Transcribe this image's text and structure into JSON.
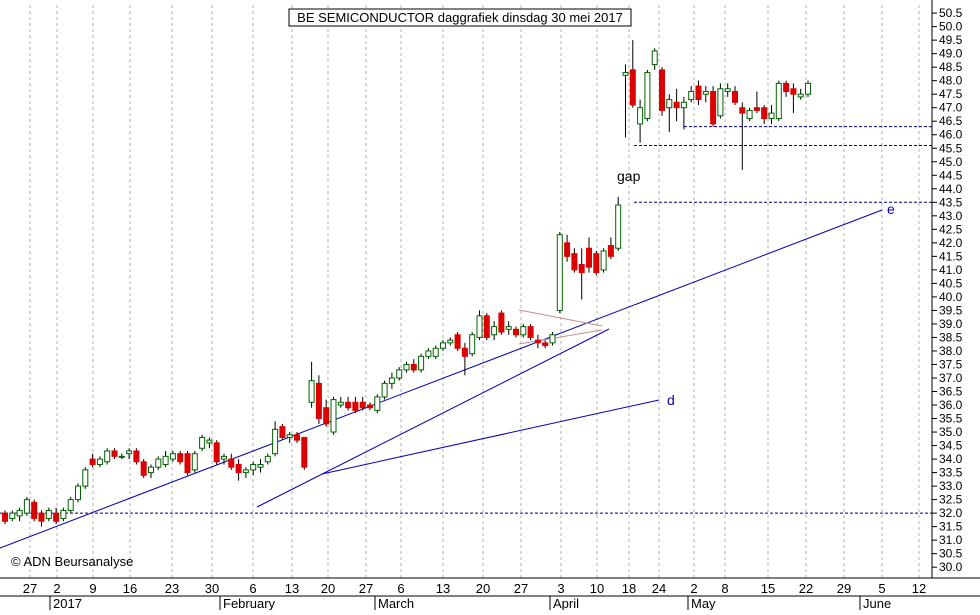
{
  "chart_data": {
    "type": "candlestick",
    "title": "BE SEMICONDUCTOR daggrafiek dinsdag 30 mei 2017",
    "copyright": "© ADN Beursanalyse",
    "ylim": [
      29.6,
      50.8
    ],
    "y_ticks": [
      "30.0",
      "30.5",
      "31.0",
      "31.5",
      "32.0",
      "32.5",
      "33.0",
      "33.5",
      "34.0",
      "34.5",
      "35.0",
      "35.5",
      "36.0",
      "36.5",
      "37.0",
      "37.5",
      "38.0",
      "38.5",
      "39.0",
      "39.5",
      "40.0",
      "40.5",
      "41.0",
      "41.5",
      "42.0",
      "42.5",
      "43.0",
      "43.5",
      "44.0",
      "44.5",
      "45.0",
      "45.5",
      "46.0",
      "46.5",
      "47.0",
      "47.5",
      "48.0",
      "48.5",
      "49.0",
      "49.5",
      "50.0",
      "50.5"
    ],
    "x_day_labels": [
      "27",
      "2",
      "9",
      "16",
      "23",
      "30",
      "6",
      "13",
      "20",
      "27",
      "6",
      "13",
      "20",
      "27",
      "3",
      "10",
      "18",
      "24",
      "2",
      "8",
      "15",
      "22",
      "29",
      "5",
      "12"
    ],
    "x_month_labels": [
      "2017",
      "February",
      "March",
      "April",
      "May",
      "June"
    ],
    "grid": true,
    "candles": [
      {
        "o": 32.0,
        "h": 32.1,
        "l": 31.6,
        "c": 31.7
      },
      {
        "o": 31.8,
        "h": 32.1,
        "l": 31.7,
        "c": 32.0
      },
      {
        "o": 31.9,
        "h": 32.2,
        "l": 31.7,
        "c": 32.1
      },
      {
        "o": 32.0,
        "h": 32.6,
        "l": 31.9,
        "c": 32.5
      },
      {
        "o": 32.4,
        "h": 32.5,
        "l": 31.7,
        "c": 31.8
      },
      {
        "o": 32.0,
        "h": 32.1,
        "l": 31.5,
        "c": 31.7
      },
      {
        "o": 31.8,
        "h": 32.2,
        "l": 31.7,
        "c": 32.1
      },
      {
        "o": 32.0,
        "h": 32.2,
        "l": 31.6,
        "c": 31.7
      },
      {
        "o": 31.8,
        "h": 32.2,
        "l": 31.7,
        "c": 32.1
      },
      {
        "o": 32.1,
        "h": 32.6,
        "l": 32.0,
        "c": 32.5
      },
      {
        "o": 32.5,
        "h": 33.1,
        "l": 32.4,
        "c": 33.0
      },
      {
        "o": 33.0,
        "h": 33.7,
        "l": 32.9,
        "c": 33.6
      },
      {
        "o": 34.0,
        "h": 34.2,
        "l": 33.7,
        "c": 33.8
      },
      {
        "o": 33.8,
        "h": 34.1,
        "l": 33.7,
        "c": 34.0
      },
      {
        "o": 33.9,
        "h": 34.4,
        "l": 33.8,
        "c": 34.3
      },
      {
        "o": 34.3,
        "h": 34.4,
        "l": 34.0,
        "c": 34.1
      },
      {
        "o": 34.1,
        "h": 34.2,
        "l": 34.0,
        "c": 34.1
      },
      {
        "o": 34.2,
        "h": 34.4,
        "l": 34.0,
        "c": 34.3
      },
      {
        "o": 34.3,
        "h": 34.4,
        "l": 33.8,
        "c": 33.9
      },
      {
        "o": 33.9,
        "h": 34.0,
        "l": 33.3,
        "c": 33.4
      },
      {
        "o": 33.5,
        "h": 33.8,
        "l": 33.3,
        "c": 33.7
      },
      {
        "o": 33.7,
        "h": 34.1,
        "l": 33.6,
        "c": 34.0
      },
      {
        "o": 33.8,
        "h": 34.3,
        "l": 33.7,
        "c": 34.1
      },
      {
        "o": 34.0,
        "h": 34.3,
        "l": 33.9,
        "c": 34.2
      },
      {
        "o": 34.2,
        "h": 34.3,
        "l": 33.8,
        "c": 33.9
      },
      {
        "o": 34.2,
        "h": 34.3,
        "l": 33.4,
        "c": 33.5
      },
      {
        "o": 33.6,
        "h": 34.3,
        "l": 33.5,
        "c": 34.2
      },
      {
        "o": 34.4,
        "h": 34.9,
        "l": 34.3,
        "c": 34.8
      },
      {
        "o": 34.6,
        "h": 34.8,
        "l": 34.4,
        "c": 34.7
      },
      {
        "o": 34.6,
        "h": 34.7,
        "l": 33.8,
        "c": 33.9
      },
      {
        "o": 34.0,
        "h": 34.2,
        "l": 33.8,
        "c": 34.1
      },
      {
        "o": 34.0,
        "h": 34.2,
        "l": 33.6,
        "c": 33.7
      },
      {
        "o": 33.8,
        "h": 34.0,
        "l": 33.2,
        "c": 33.5
      },
      {
        "o": 33.5,
        "h": 33.7,
        "l": 33.3,
        "c": 33.6
      },
      {
        "o": 33.6,
        "h": 33.9,
        "l": 33.4,
        "c": 33.8
      },
      {
        "o": 33.7,
        "h": 34.0,
        "l": 33.5,
        "c": 33.8
      },
      {
        "o": 33.9,
        "h": 34.2,
        "l": 33.8,
        "c": 34.1
      },
      {
        "o": 34.2,
        "h": 35.4,
        "l": 34.1,
        "c": 35.1
      },
      {
        "o": 35.2,
        "h": 35.3,
        "l": 34.7,
        "c": 34.8
      },
      {
        "o": 34.8,
        "h": 35.0,
        "l": 34.6,
        "c": 34.9
      },
      {
        "o": 34.9,
        "h": 35.0,
        "l": 34.6,
        "c": 34.7
      },
      {
        "o": 34.8,
        "h": 34.8,
        "l": 33.6,
        "c": 33.7
      },
      {
        "o": 36.1,
        "h": 37.6,
        "l": 35.9,
        "c": 36.9
      },
      {
        "o": 36.8,
        "h": 37.1,
        "l": 35.3,
        "c": 35.5
      },
      {
        "o": 35.9,
        "h": 36.2,
        "l": 35.2,
        "c": 35.3
      },
      {
        "o": 35.0,
        "h": 36.3,
        "l": 34.9,
        "c": 36.2
      },
      {
        "o": 36.0,
        "h": 36.3,
        "l": 35.9,
        "c": 36.1
      },
      {
        "o": 36.1,
        "h": 36.3,
        "l": 35.8,
        "c": 35.9
      },
      {
        "o": 36.1,
        "h": 36.3,
        "l": 35.7,
        "c": 35.8
      },
      {
        "o": 36.1,
        "h": 36.3,
        "l": 35.8,
        "c": 35.9
      },
      {
        "o": 36.0,
        "h": 36.1,
        "l": 35.8,
        "c": 35.9
      },
      {
        "o": 35.8,
        "h": 36.4,
        "l": 35.7,
        "c": 36.3
      },
      {
        "o": 36.3,
        "h": 36.9,
        "l": 36.2,
        "c": 36.8
      },
      {
        "o": 36.8,
        "h": 37.2,
        "l": 36.6,
        "c": 37.0
      },
      {
        "o": 37.0,
        "h": 37.4,
        "l": 36.9,
        "c": 37.3
      },
      {
        "o": 37.3,
        "h": 37.6,
        "l": 37.2,
        "c": 37.5
      },
      {
        "o": 37.5,
        "h": 37.7,
        "l": 37.2,
        "c": 37.3
      },
      {
        "o": 37.3,
        "h": 37.9,
        "l": 37.2,
        "c": 37.8
      },
      {
        "o": 37.8,
        "h": 38.1,
        "l": 37.7,
        "c": 38.0
      },
      {
        "o": 37.8,
        "h": 38.2,
        "l": 37.7,
        "c": 38.1
      },
      {
        "o": 38.1,
        "h": 38.4,
        "l": 38.0,
        "c": 38.3
      },
      {
        "o": 38.3,
        "h": 38.5,
        "l": 38.2,
        "c": 38.4
      },
      {
        "o": 38.6,
        "h": 38.7,
        "l": 38.0,
        "c": 38.1
      },
      {
        "o": 38.1,
        "h": 38.3,
        "l": 37.1,
        "c": 37.8
      },
      {
        "o": 37.9,
        "h": 38.7,
        "l": 37.8,
        "c": 38.6
      },
      {
        "o": 38.5,
        "h": 39.5,
        "l": 38.4,
        "c": 39.3
      },
      {
        "o": 39.3,
        "h": 39.4,
        "l": 38.4,
        "c": 38.5
      },
      {
        "o": 38.6,
        "h": 39.1,
        "l": 38.4,
        "c": 38.9
      },
      {
        "o": 39.4,
        "h": 39.5,
        "l": 38.6,
        "c": 38.7
      },
      {
        "o": 38.8,
        "h": 39.1,
        "l": 38.6,
        "c": 38.9
      },
      {
        "o": 38.8,
        "h": 38.9,
        "l": 38.5,
        "c": 38.6
      },
      {
        "o": 38.6,
        "h": 39.0,
        "l": 38.5,
        "c": 38.9
      },
      {
        "o": 38.9,
        "h": 39.0,
        "l": 38.4,
        "c": 38.5
      },
      {
        "o": 38.4,
        "h": 38.6,
        "l": 38.1,
        "c": 38.3
      },
      {
        "o": 38.3,
        "h": 38.4,
        "l": 38.1,
        "c": 38.2
      },
      {
        "o": 38.3,
        "h": 38.7,
        "l": 38.2,
        "c": 38.6
      },
      {
        "o": 39.5,
        "h": 42.4,
        "l": 39.4,
        "c": 42.3
      },
      {
        "o": 42.0,
        "h": 42.3,
        "l": 41.3,
        "c": 41.5
      },
      {
        "o": 41.6,
        "h": 41.8,
        "l": 40.9,
        "c": 41.0
      },
      {
        "o": 41.2,
        "h": 41.8,
        "l": 39.9,
        "c": 40.9
      },
      {
        "o": 41.8,
        "h": 42.2,
        "l": 40.9,
        "c": 41.1
      },
      {
        "o": 41.6,
        "h": 41.7,
        "l": 40.8,
        "c": 40.9
      },
      {
        "o": 41.0,
        "h": 41.8,
        "l": 40.9,
        "c": 41.7
      },
      {
        "o": 41.9,
        "h": 42.2,
        "l": 41.4,
        "c": 41.5
      },
      {
        "o": 41.8,
        "h": 43.7,
        "l": 41.7,
        "c": 43.4
      },
      {
        "o": 48.2,
        "h": 48.6,
        "l": 45.9,
        "c": 48.3
      },
      {
        "o": 48.4,
        "h": 49.5,
        "l": 47.0,
        "c": 47.1
      },
      {
        "o": 46.4,
        "h": 47.3,
        "l": 45.7,
        "c": 47.0
      },
      {
        "o": 46.6,
        "h": 48.4,
        "l": 46.5,
        "c": 48.3
      },
      {
        "o": 48.6,
        "h": 49.2,
        "l": 48.4,
        "c": 49.1
      },
      {
        "o": 48.4,
        "h": 48.5,
        "l": 46.7,
        "c": 46.9
      },
      {
        "o": 47.0,
        "h": 47.5,
        "l": 46.1,
        "c": 47.3
      },
      {
        "o": 47.2,
        "h": 47.7,
        "l": 46.5,
        "c": 47.0
      },
      {
        "o": 47.0,
        "h": 47.4,
        "l": 46.2,
        "c": 47.2
      },
      {
        "o": 47.3,
        "h": 47.8,
        "l": 47.2,
        "c": 47.6
      },
      {
        "o": 47.8,
        "h": 48.0,
        "l": 47.1,
        "c": 47.3
      },
      {
        "o": 47.5,
        "h": 47.8,
        "l": 47.2,
        "c": 47.6
      },
      {
        "o": 47.6,
        "h": 47.8,
        "l": 46.3,
        "c": 46.4
      },
      {
        "o": 46.7,
        "h": 47.9,
        "l": 46.6,
        "c": 47.7
      },
      {
        "o": 47.6,
        "h": 47.9,
        "l": 47.4,
        "c": 47.7
      },
      {
        "o": 47.6,
        "h": 47.8,
        "l": 47.1,
        "c": 47.2
      },
      {
        "o": 47.0,
        "h": 47.2,
        "l": 44.7,
        "c": 46.8
      },
      {
        "o": 46.6,
        "h": 47.0,
        "l": 46.5,
        "c": 46.9
      },
      {
        "o": 47.0,
        "h": 47.6,
        "l": 46.8,
        "c": 46.9
      },
      {
        "o": 47.0,
        "h": 47.1,
        "l": 46.4,
        "c": 46.6
      },
      {
        "o": 46.6,
        "h": 47.1,
        "l": 46.4,
        "c": 46.8
      },
      {
        "o": 46.6,
        "h": 48.0,
        "l": 46.5,
        "c": 47.9
      },
      {
        "o": 47.9,
        "h": 48.0,
        "l": 47.4,
        "c": 47.6
      },
      {
        "o": 47.7,
        "h": 47.9,
        "l": 46.8,
        "c": 47.5
      },
      {
        "o": 47.4,
        "h": 47.7,
        "l": 47.3,
        "c": 47.5
      },
      {
        "o": 47.5,
        "h": 48.0,
        "l": 47.4,
        "c": 47.9
      }
    ],
    "horizontal_lines": [
      {
        "y": 32.0,
        "label": ""
      },
      {
        "y": 43.5,
        "label": ""
      },
      {
        "y": 45.6,
        "label": ""
      },
      {
        "y": 46.3,
        "label": ""
      }
    ],
    "annotations": [
      "gap",
      "d",
      "e"
    ],
    "colors": {
      "up": "#ffffff",
      "down": "#dd0000",
      "line": "#0000b0",
      "grid": "#b0b0b0",
      "dotted": "#000080"
    }
  }
}
